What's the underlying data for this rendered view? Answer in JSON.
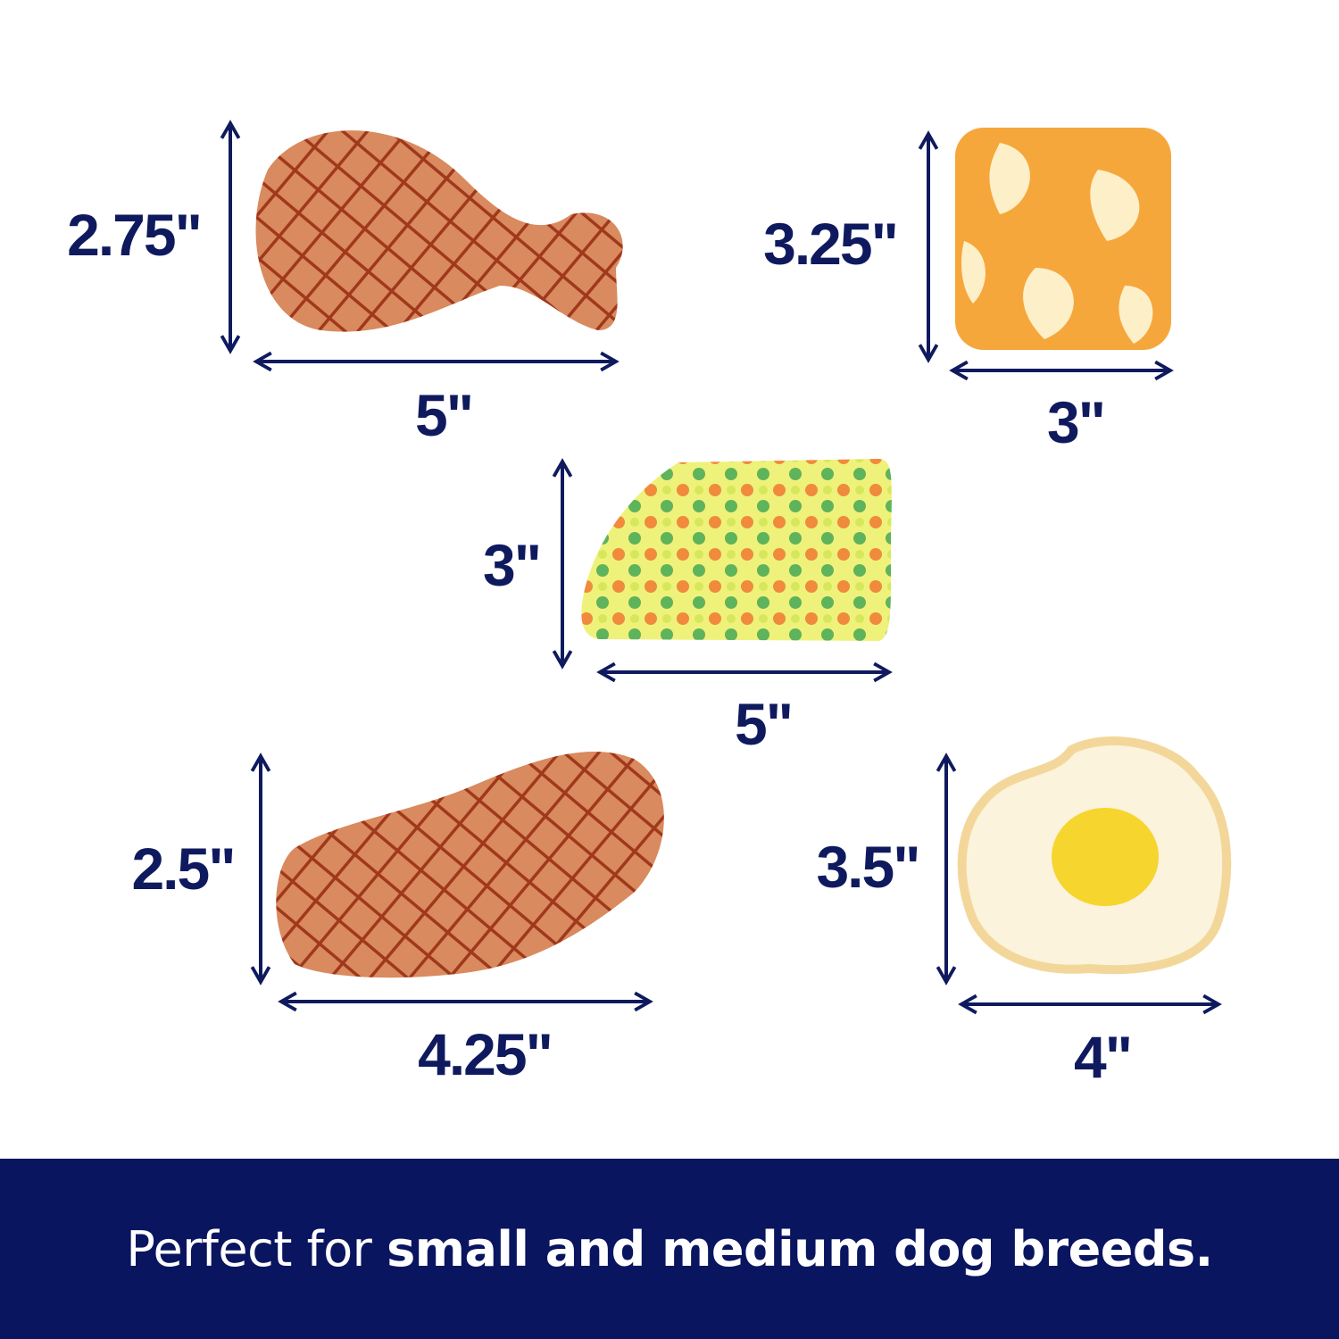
{
  "colors": {
    "navy": "#0a1560",
    "dimension_text": "#0f1a5e",
    "background": "#ffffff"
  },
  "toys": [
    {
      "name": "drumstick",
      "height": "2.75\"",
      "width": "5\""
    },
    {
      "name": "cheese-square",
      "height": "3.25\"",
      "width": "3\""
    },
    {
      "name": "veggie-wedge",
      "height": "3\"",
      "width": "5\""
    },
    {
      "name": "chicken-thigh",
      "height": "2.5\"",
      "width": "4.25\""
    },
    {
      "name": "fried-egg",
      "height": "3.5\"",
      "width": "4\""
    }
  ],
  "banner": {
    "prefix": "Perfect for ",
    "bold": "small and medium dog breeds."
  }
}
